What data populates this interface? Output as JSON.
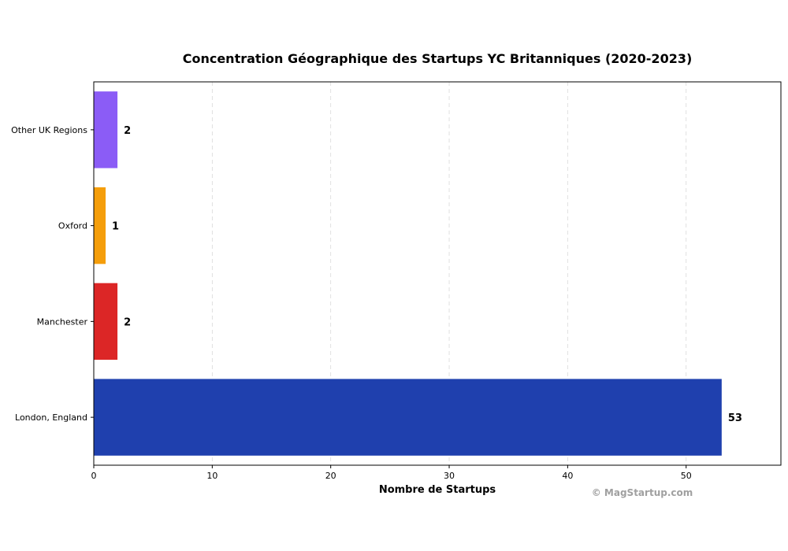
{
  "chart_data": {
    "type": "bar",
    "orientation": "horizontal",
    "title": "Concentration Géographique des Startups YC Britanniques (2020-2023)",
    "xlabel": "Nombre de Startups",
    "ylabel": "",
    "categories": [
      "London, England",
      "Manchester",
      "Oxford",
      "Other UK Regions"
    ],
    "values": [
      53,
      2,
      1,
      2
    ],
    "colors": [
      "#1f40ae",
      "#dc2626",
      "#f59e0b",
      "#8b5cf6"
    ],
    "xlim": [
      0,
      58
    ],
    "xticks": [
      0,
      10,
      20,
      30,
      40,
      50
    ],
    "grid": "x-dashed",
    "legend": "none"
  },
  "watermark": "© MagStartup.com"
}
